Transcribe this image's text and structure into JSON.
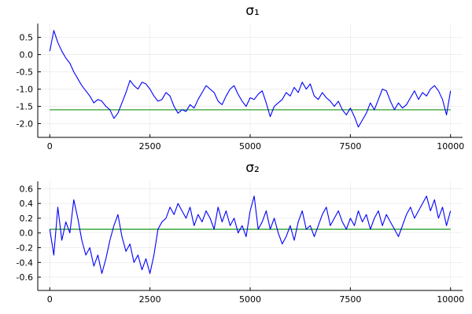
{
  "chart_data": [
    {
      "type": "line",
      "title": "σ₁",
      "xlabel": "",
      "ylabel": "",
      "xlim": [
        -300,
        10300
      ],
      "ylim": [
        -2.4,
        0.9
      ],
      "xticks": [
        0,
        2500,
        5000,
        7500,
        10000
      ],
      "xtick_labels": [
        "0",
        "2500",
        "5000",
        "7500",
        "10000"
      ],
      "yticks": [
        0.5,
        0.0,
        -0.5,
        -1.0,
        -1.5,
        -2.0
      ],
      "ytick_labels": [
        "0.5",
        "0.0",
        "-0.5",
        "-1.0",
        "-1.5",
        "-2.0"
      ],
      "grid": true,
      "legend": false,
      "reference_line": {
        "y": -1.6,
        "color": "#2ca02c"
      },
      "series": [
        {
          "color": "#0000ff",
          "x": [
            0,
            100,
            200,
            300,
            400,
            500,
            600,
            700,
            800,
            900,
            1000,
            1100,
            1200,
            1300,
            1400,
            1500,
            1600,
            1700,
            1800,
            1900,
            2000,
            2100,
            2200,
            2300,
            2400,
            2500,
            2600,
            2700,
            2800,
            2900,
            3000,
            3100,
            3200,
            3300,
            3400,
            3500,
            3600,
            3700,
            3800,
            3900,
            4000,
            4100,
            4200,
            4300,
            4400,
            4500,
            4600,
            4700,
            4800,
            4900,
            5000,
            5100,
            5200,
            5300,
            5400,
            5500,
            5600,
            5700,
            5800,
            5900,
            6000,
            6100,
            6200,
            6300,
            6400,
            6500,
            6600,
            6700,
            6800,
            6900,
            7000,
            7100,
            7200,
            7300,
            7400,
            7500,
            7600,
            7700,
            7800,
            7900,
            8000,
            8100,
            8200,
            8300,
            8400,
            8500,
            8600,
            8700,
            8800,
            8900,
            9000,
            9100,
            9200,
            9300,
            9400,
            9500,
            9600,
            9700,
            9800,
            9900,
            10000
          ],
          "values": [
            0.1,
            0.7,
            0.35,
            0.1,
            -0.1,
            -0.25,
            -0.5,
            -0.7,
            -0.9,
            -1.05,
            -1.2,
            -1.4,
            -1.3,
            -1.35,
            -1.5,
            -1.6,
            -1.85,
            -1.7,
            -1.4,
            -1.1,
            -0.75,
            -0.9,
            -1.0,
            -0.8,
            -0.85,
            -1.0,
            -1.2,
            -1.35,
            -1.3,
            -1.1,
            -1.2,
            -1.5,
            -1.7,
            -1.6,
            -1.65,
            -1.45,
            -1.55,
            -1.3,
            -1.1,
            -0.9,
            -1.0,
            -1.1,
            -1.35,
            -1.45,
            -1.2,
            -1.0,
            -0.9,
            -1.15,
            -1.35,
            -1.5,
            -1.25,
            -1.3,
            -1.15,
            -1.05,
            -1.4,
            -1.8,
            -1.5,
            -1.4,
            -1.3,
            -1.1,
            -1.2,
            -0.95,
            -1.1,
            -0.8,
            -1.0,
            -0.85,
            -1.2,
            -1.3,
            -1.1,
            -1.25,
            -1.35,
            -1.5,
            -1.35,
            -1.6,
            -1.75,
            -1.55,
            -1.8,
            -2.1,
            -1.9,
            -1.7,
            -1.4,
            -1.6,
            -1.3,
            -1.0,
            -1.05,
            -1.35,
            -1.6,
            -1.4,
            -1.55,
            -1.45,
            -1.25,
            -1.05,
            -1.3,
            -1.1,
            -1.2,
            -1.0,
            -0.9,
            -1.05,
            -1.3,
            -1.75,
            -1.05
          ]
        }
      ]
    },
    {
      "type": "line",
      "title": "σ₂",
      "xlabel": "",
      "ylabel": "",
      "xlim": [
        -300,
        10300
      ],
      "ylim": [
        -0.78,
        0.7
      ],
      "xticks": [
        0,
        2500,
        5000,
        7500,
        10000
      ],
      "xtick_labels": [
        "0",
        "2500",
        "5000",
        "7500",
        "10000"
      ],
      "yticks": [
        0.6,
        0.4,
        0.2,
        0.0,
        -0.2,
        -0.4,
        -0.6
      ],
      "ytick_labels": [
        "0.6",
        "0.4",
        "0.2",
        "0.0",
        "-0.2",
        "-0.4",
        "-0.6"
      ],
      "grid": true,
      "legend": false,
      "reference_line": {
        "y": 0.05,
        "color": "#2ca02c"
      },
      "series": [
        {
          "color": "#0000ff",
          "x": [
            0,
            100,
            200,
            300,
            400,
            500,
            600,
            700,
            800,
            900,
            1000,
            1100,
            1200,
            1300,
            1400,
            1500,
            1600,
            1700,
            1800,
            1900,
            2000,
            2100,
            2200,
            2300,
            2400,
            2500,
            2600,
            2700,
            2800,
            2900,
            3000,
            3100,
            3200,
            3300,
            3400,
            3500,
            3600,
            3700,
            3800,
            3900,
            4000,
            4100,
            4200,
            4300,
            4400,
            4500,
            4600,
            4700,
            4800,
            4900,
            5000,
            5100,
            5200,
            5300,
            5400,
            5500,
            5600,
            5700,
            5800,
            5900,
            6000,
            6100,
            6200,
            6300,
            6400,
            6500,
            6600,
            6700,
            6800,
            6900,
            7000,
            7100,
            7200,
            7300,
            7400,
            7500,
            7600,
            7700,
            7800,
            7900,
            8000,
            8100,
            8200,
            8300,
            8400,
            8500,
            8600,
            8700,
            8800,
            8900,
            9000,
            9100,
            9200,
            9300,
            9400,
            9500,
            9600,
            9700,
            9800,
            9900,
            10000
          ],
          "values": [
            0.05,
            -0.3,
            0.35,
            -0.1,
            0.15,
            0.0,
            0.45,
            0.2,
            -0.1,
            -0.3,
            -0.2,
            -0.45,
            -0.3,
            -0.55,
            -0.35,
            -0.1,
            0.1,
            0.25,
            -0.05,
            -0.25,
            -0.15,
            -0.4,
            -0.3,
            -0.5,
            -0.35,
            -0.55,
            -0.3,
            0.05,
            0.15,
            0.2,
            0.35,
            0.25,
            0.4,
            0.3,
            0.2,
            0.35,
            0.1,
            0.25,
            0.15,
            0.3,
            0.2,
            0.05,
            0.35,
            0.15,
            0.3,
            0.1,
            0.2,
            0.0,
            0.1,
            -0.05,
            0.3,
            0.5,
            0.05,
            0.15,
            0.3,
            0.05,
            0.2,
            0.0,
            -0.15,
            -0.05,
            0.1,
            -0.1,
            0.15,
            0.3,
            0.05,
            0.1,
            -0.05,
            0.1,
            0.25,
            0.35,
            0.1,
            0.2,
            0.3,
            0.15,
            0.05,
            0.2,
            0.1,
            0.3,
            0.15,
            0.25,
            0.05,
            0.2,
            0.3,
            0.1,
            0.25,
            0.15,
            0.05,
            -0.05,
            0.1,
            0.25,
            0.35,
            0.2,
            0.3,
            0.4,
            0.5,
            0.3,
            0.45,
            0.2,
            0.35,
            0.1,
            0.3
          ]
        }
      ]
    }
  ]
}
